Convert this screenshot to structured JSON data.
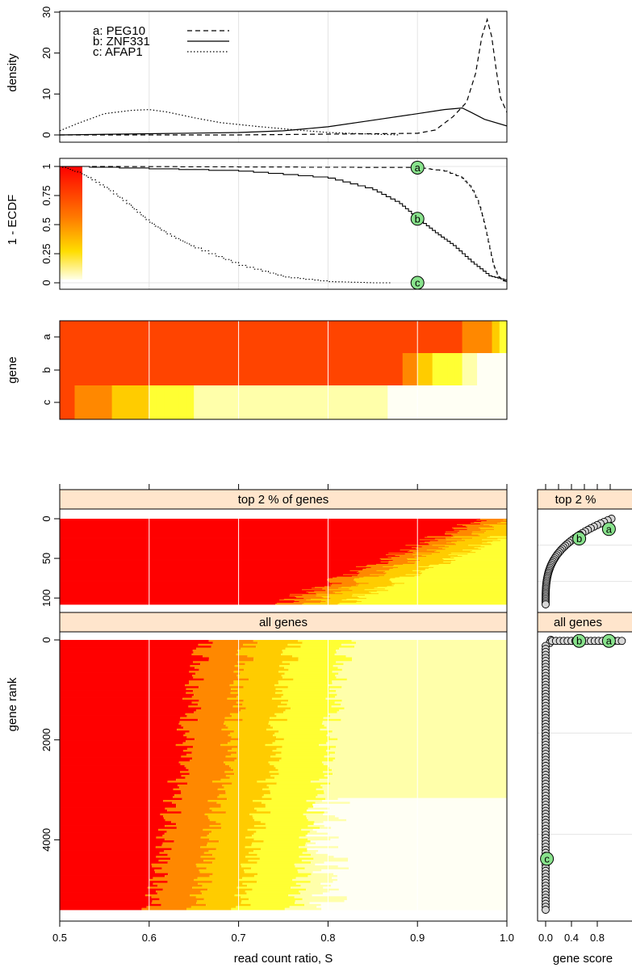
{
  "colors": {
    "grid": "#e4e4e4",
    "strip": "#ffe5cc",
    "point_fill": "#d6d6d6",
    "label_fill": "#88e28c",
    "heat_ramp": [
      "#ff0000",
      "#ff4400",
      "#ff8800",
      "#ffcc00",
      "#ffff33",
      "#ffffaa",
      "#fffff4"
    ]
  },
  "chart_data": [
    {
      "id": "density",
      "type": "line",
      "ylabel": "density",
      "xlim": [
        0.5,
        1.0
      ],
      "ylim": [
        0,
        30
      ],
      "yticks": [
        "0",
        "10",
        "20",
        "30"
      ],
      "legend": {
        "position": "top-left"
      },
      "series": [
        {
          "name": "a: PEG10",
          "linetype": "dashed",
          "x": [
            0.5,
            0.7,
            0.8,
            0.9,
            0.92,
            0.94,
            0.955,
            0.965,
            0.972,
            0.978,
            0.983,
            0.988,
            0.993,
            1.0
          ],
          "y": [
            0,
            0,
            0.2,
            0.4,
            1.2,
            4.5,
            8,
            15,
            24,
            28.2,
            24,
            16,
            9,
            5.5
          ]
        },
        {
          "name": "b: ZNF331",
          "linetype": "solid",
          "x": [
            0.5,
            0.6,
            0.7,
            0.75,
            0.8,
            0.85,
            0.9,
            0.93,
            0.95,
            0.96,
            0.975,
            1.0
          ],
          "y": [
            0,
            0.3,
            0.6,
            1.0,
            2.0,
            3.6,
            5.2,
            6.2,
            6.6,
            5.5,
            3.8,
            2.2
          ]
        },
        {
          "name": "c: AFAP1",
          "linetype": "dotted",
          "x": [
            0.5,
            0.52,
            0.55,
            0.58,
            0.6,
            0.62,
            0.65,
            0.68,
            0.72,
            0.76,
            0.8,
            0.85,
            0.88
          ],
          "y": [
            1.0,
            2.8,
            5.2,
            6.0,
            6.2,
            5.6,
            4.2,
            3.0,
            2.1,
            1.3,
            0.6,
            0.2,
            0
          ]
        }
      ]
    },
    {
      "id": "ecdf",
      "type": "line",
      "ylabel": "1 - ECDF",
      "xlim": [
        0.5,
        1.0
      ],
      "ylim": [
        0,
        1
      ],
      "yticks": [
        "0",
        "0.25",
        "0.5",
        "0.75",
        "1"
      ],
      "series": [
        {
          "name": "a",
          "linetype": "dashed",
          "x": [
            0.5,
            0.9,
            0.93,
            0.95,
            0.96,
            0.97,
            0.975,
            0.98,
            0.985,
            0.99,
            0.995,
            1.0
          ],
          "y": [
            1,
            0.99,
            0.96,
            0.9,
            0.82,
            0.65,
            0.5,
            0.32,
            0.15,
            0.06,
            0.02,
            0.01
          ]
        },
        {
          "name": "b",
          "linetype": "solid",
          "x": [
            0.5,
            0.7,
            0.8,
            0.85,
            0.88,
            0.9,
            0.92,
            0.94,
            0.96,
            0.98,
            1.0
          ],
          "y": [
            1,
            0.96,
            0.9,
            0.8,
            0.68,
            0.55,
            0.43,
            0.32,
            0.18,
            0.06,
            0.02
          ]
        },
        {
          "name": "c",
          "linetype": "dotted",
          "x": [
            0.5,
            0.52,
            0.55,
            0.58,
            0.6,
            0.62,
            0.65,
            0.7,
            0.75,
            0.8,
            0.85,
            0.87
          ],
          "y": [
            1,
            0.95,
            0.82,
            0.65,
            0.52,
            0.42,
            0.3,
            0.15,
            0.05,
            0.01,
            0,
            0
          ]
        }
      ],
      "markers": [
        {
          "label": "a",
          "x": 0.9,
          "y": 0.99
        },
        {
          "label": "b",
          "x": 0.9,
          "y": 0.55
        },
        {
          "label": "c",
          "x": 0.9,
          "y": 0
        }
      ]
    },
    {
      "id": "gene_heatmap",
      "type": "heatmap",
      "ylabel": "gene",
      "rows": [
        "a",
        "b",
        "c"
      ],
      "xlim": [
        0.5,
        1.0
      ]
    },
    {
      "id": "rank_heatmap",
      "type": "heatmap",
      "xlabel": "read count ratio, S",
      "ylabel": "gene rank",
      "xticks": [
        "0.5",
        "0.6",
        "0.7",
        "0.8",
        "0.9",
        "1.0"
      ],
      "xlim": [
        0.5,
        1.0
      ],
      "panels": [
        {
          "strip": "top 2 % of genes",
          "ylim": [
            0,
            108
          ],
          "yticks": [
            "0",
            "50",
            "100"
          ]
        },
        {
          "strip": "all genes",
          "ylim": [
            0,
            5400
          ],
          "yticks": [
            "0",
            "2000",
            "4000"
          ]
        }
      ]
    },
    {
      "id": "gene_score",
      "type": "scatter",
      "xlabel": "gene score",
      "xticks": [
        "0.0",
        "0.4",
        "0.8"
      ],
      "panels": [
        {
          "strip": "top 2 %",
          "ylim": [
            0,
            108
          ],
          "markers": [
            {
              "label": "a",
              "x": 0.98,
              "y": 13
            },
            {
              "label": "b",
              "x": 0.52,
              "y": 25
            }
          ]
        },
        {
          "strip": "all genes",
          "ylim": [
            0,
            5400
          ],
          "markers": [
            {
              "label": "b",
              "x": 0.52,
              "y": 25
            },
            {
              "label": "a",
              "x": 0.98,
              "y": 13
            },
            {
              "label": "c",
              "x": 0.02,
              "y": 4380
            }
          ]
        }
      ]
    }
  ]
}
